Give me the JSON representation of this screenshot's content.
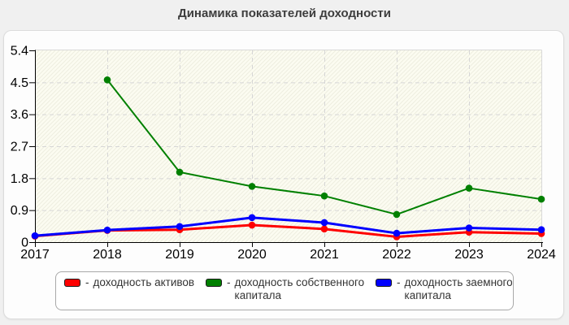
{
  "title": "Динамика показателей доходности",
  "chart_data": {
    "type": "line",
    "title": "Динамика показателей доходности",
    "x": [
      "2017",
      "2018",
      "2019",
      "2020",
      "2021",
      "2022",
      "2023",
      "2024"
    ],
    "ylim": [
      0,
      5.4
    ],
    "yticks": [
      0,
      0.9,
      1.8,
      2.7,
      3.6,
      4.5,
      5.4
    ],
    "ytick_labels": [
      "0",
      "0.9",
      "1.8",
      "2.7",
      "3.6",
      "4.5",
      "5.4"
    ],
    "grid": true,
    "legend_position": "bottom",
    "series": [
      {
        "name": "доходность активов",
        "color": "#fe0000",
        "width": 3,
        "values": [
          0.17,
          0.33,
          0.35,
          0.48,
          0.37,
          0.15,
          0.28,
          0.24
        ]
      },
      {
        "name": "доходность собственного капитала",
        "color": "#008000",
        "width": 2,
        "values": [
          null,
          4.57,
          1.97,
          1.57,
          1.3,
          0.78,
          1.52,
          1.21
        ]
      },
      {
        "name": "доходность заемного капитала",
        "color": "#0000fe",
        "width": 3,
        "values": [
          0.18,
          0.34,
          0.44,
          0.69,
          0.55,
          0.25,
          0.4,
          0.35
        ]
      }
    ]
  },
  "legend": {
    "dash": "-",
    "items": [
      {
        "label": "доходность активов",
        "color": "#fe0000"
      },
      {
        "label": "доходность собственного капитала",
        "color": "#008000"
      },
      {
        "label": "доходность заемного капитала",
        "color": "#0000fe"
      }
    ]
  }
}
